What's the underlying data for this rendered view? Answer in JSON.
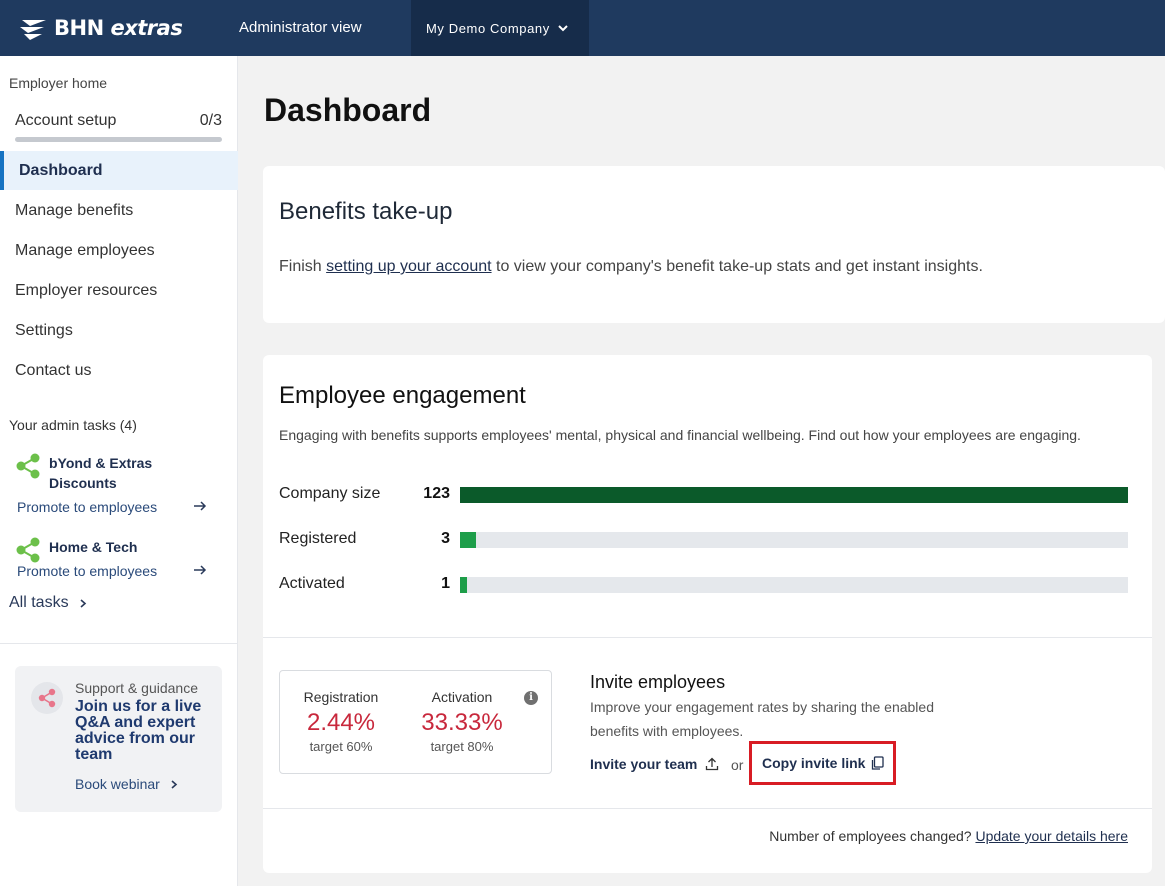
{
  "header": {
    "logo_text_bhn": "BHN",
    "logo_text_extras": "extras",
    "admin_view": "Administrator view",
    "company_selector": "My Demo Company"
  },
  "sidebar": {
    "employer_home": "Employer home",
    "account_setup": {
      "label": "Account setup",
      "progress_text": "0/3",
      "progress": 0
    },
    "nav": [
      {
        "label": "Dashboard",
        "active": true
      },
      {
        "label": "Manage benefits"
      },
      {
        "label": "Manage employees"
      },
      {
        "label": "Employer resources"
      },
      {
        "label": "Settings"
      },
      {
        "label": "Contact us"
      }
    ],
    "tasks_title": "Your admin tasks (4)",
    "tasks": [
      {
        "title": "bYond & Extras Discounts",
        "link": "Promote to employees"
      },
      {
        "title": "Home & Tech",
        "link": "Promote to employees"
      }
    ],
    "all_tasks": "All tasks",
    "support": {
      "label": "Support & guidance",
      "headline": "Join us for a live Q&A and expert advice from our team",
      "cta": "Book webinar"
    }
  },
  "main": {
    "title": "Dashboard",
    "benefits": {
      "heading": "Benefits take-up",
      "text_before": "Finish ",
      "link": "setting up your account",
      "text_after": " to view your company's benefit take-up stats and get instant insights."
    },
    "engagement": {
      "heading": "Employee engagement",
      "description": "Engaging with benefits supports employees' mental, physical and financial wellbeing. Find out how your employees are engaging.",
      "stats": [
        {
          "label": "Company size",
          "value": 123,
          "color": "#0b5a2a"
        },
        {
          "label": "Registered",
          "value": 3,
          "color": "#1e9e4a"
        },
        {
          "label": "Activated",
          "value": 1,
          "color": "#1e9e4a"
        }
      ],
      "rates": {
        "registration": {
          "label": "Registration",
          "value": "2.44%",
          "target": "target 60%"
        },
        "activation": {
          "label": "Activation",
          "value": "33.33%",
          "target": "target 80%"
        }
      },
      "invite": {
        "title": "Invite employees",
        "description": "Improve your engagement rates by sharing the enabled benefits with employees.",
        "invite_team": "Invite your team",
        "or": "or",
        "copy_link": "Copy invite link"
      },
      "footer": {
        "text": "Number of employees changed? ",
        "link": "Update your details here"
      }
    }
  },
  "colors": {
    "header_bg": "#1f3a5f",
    "accent_red": "#c8283c",
    "bar_dark_green": "#0b5a2a",
    "bar_green": "#1e9e4a",
    "task_icon_green": "#6cc04a"
  }
}
